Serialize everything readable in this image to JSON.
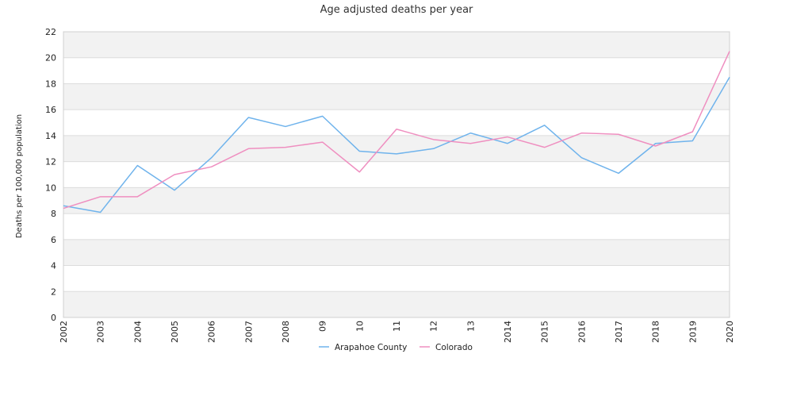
{
  "chart_data": {
    "type": "line",
    "title": "Age adjusted deaths per year",
    "ylabel": "Deaths per 100,000 population",
    "xlabel": "",
    "categories": [
      "2002",
      "2003",
      "2004",
      "2005",
      "2006",
      "2007",
      "2008",
      "09",
      "10",
      "11",
      "12",
      "13",
      "2014",
      "2015",
      "2016",
      "2017",
      "2018",
      "2019",
      "2020"
    ],
    "ylim": [
      0,
      22
    ],
    "yticks": [
      "0",
      "2",
      "4",
      "6",
      "8",
      "10",
      "12",
      "14",
      "16",
      "18",
      "20",
      "22"
    ],
    "grid": true,
    "banded_background": true,
    "legend_position": "bottom-center",
    "series": [
      {
        "name": "Arapahoe County",
        "color": "#6fb3ec",
        "values": [
          8.6,
          8.1,
          11.7,
          9.8,
          12.3,
          15.4,
          14.7,
          15.5,
          12.8,
          12.6,
          13.0,
          14.2,
          13.4,
          14.8,
          12.3,
          11.1,
          13.4,
          13.6,
          18.5
        ]
      },
      {
        "name": "Colorado",
        "color": "#ef8fc0",
        "values": [
          8.4,
          9.3,
          9.3,
          11.0,
          11.6,
          13.0,
          13.1,
          13.5,
          11.2,
          14.5,
          13.7,
          13.4,
          13.9,
          13.1,
          14.2,
          14.1,
          13.2,
          14.3,
          20.5
        ]
      }
    ]
  }
}
